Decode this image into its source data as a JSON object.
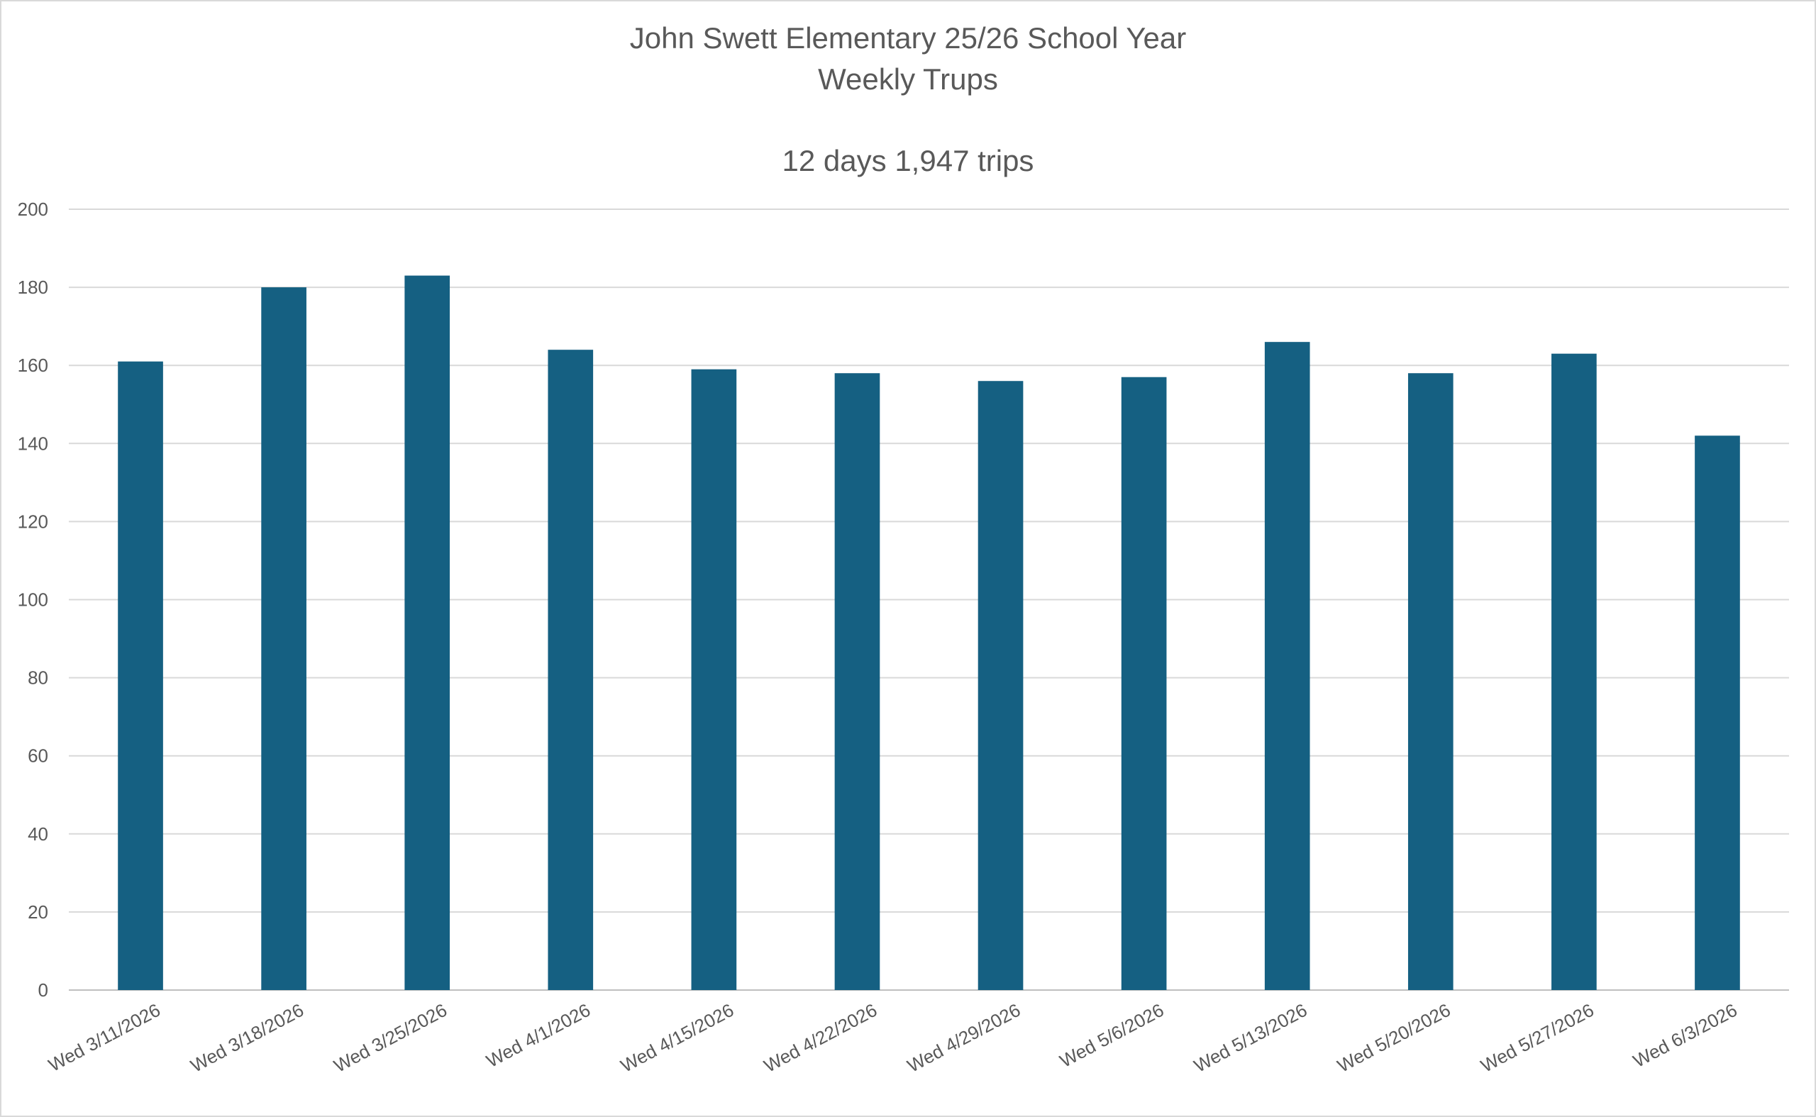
{
  "chart_data": {
    "type": "bar",
    "title_lines": [
      "John Swett Elementary 25/26 School Year",
      "Weekly Trups"
    ],
    "subtitle": "12 days 1,947 trips",
    "categories": [
      "Wed 3/11/2026",
      "Wed 3/18/2026",
      "Wed 3/25/2026",
      "Wed 4/1/2026",
      "Wed 4/15/2026",
      "Wed 4/22/2026",
      "Wed 4/29/2026",
      "Wed 5/6/2026",
      "Wed 5/13/2026",
      "Wed 5/20/2026",
      "Wed 5/27/2026",
      "Wed 6/3/2026"
    ],
    "values": [
      161,
      180,
      183,
      164,
      159,
      158,
      156,
      157,
      166,
      158,
      163,
      142
    ],
    "ylim": [
      0,
      200
    ],
    "yticks": [
      0,
      20,
      40,
      60,
      80,
      100,
      120,
      140,
      160,
      180,
      200
    ],
    "grid": true,
    "legend": "none",
    "bar_color": "#156082",
    "grid_color": "#d9d9d9",
    "text_color": "#595959"
  }
}
